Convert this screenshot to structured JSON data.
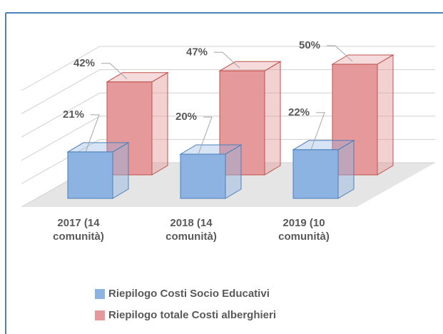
{
  "chart_data": {
    "type": "bar3d",
    "categories": [
      "2017 (14 comunità)",
      "2018 (14 comunità)",
      "2019 (10 comunità)"
    ],
    "series": [
      {
        "name": "Riepilogo Costi Socio Educativi",
        "color": "#8db3e2",
        "values": [
          21,
          20,
          22
        ],
        "value_labels": [
          "21%",
          "20%",
          "22%"
        ]
      },
      {
        "name": "Riepilogo totale Costi alberghieri",
        "color": "#e6999a",
        "values": [
          42,
          47,
          50
        ],
        "value_labels": [
          "42%",
          "47%",
          "50%"
        ]
      }
    ],
    "ylim": [
      0,
      50
    ],
    "yticks": [
      0,
      10,
      20,
      30,
      40,
      50
    ],
    "grid": true
  }
}
